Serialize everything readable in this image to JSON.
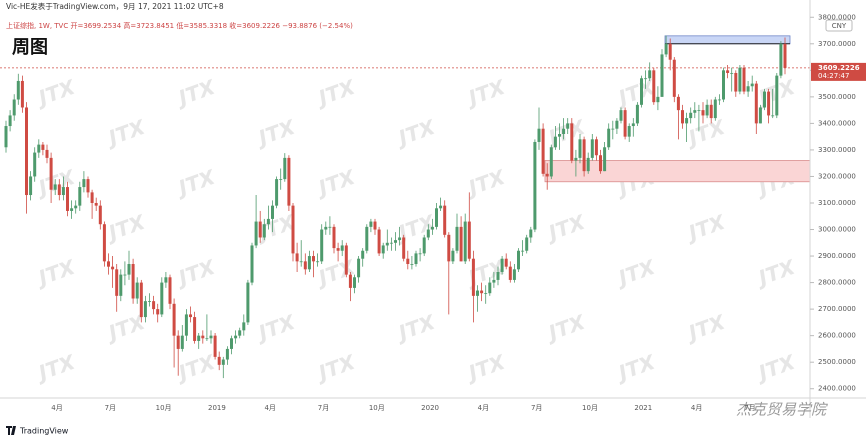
{
  "chart_data": {
    "type": "candlestick",
    "attribution": "Vic-HE发表于TradingView.com，9月 17, 2021 11:02 UTC+8",
    "legend": "上证综指, 1W, TVC 开=3699.2534 高=3723.8451 低=3585.3318 收=3609.2226 −93.8876 (−2.54%)",
    "title": "周图",
    "currency": "CNY",
    "countdown": "04:27:47",
    "last_price_label": "3609.2226",
    "watermark": "JTX",
    "brand": "TradingView",
    "signature": "杰克贸易学院",
    "up_color": "#4e9a6c",
    "down_color": "#cf4b43",
    "ylim": [
      2365,
      3850
    ],
    "yticks": [
      {
        "value": 2400,
        "label": "2400.0000"
      },
      {
        "value": 2500,
        "label": "2500.0000"
      },
      {
        "value": 2600,
        "label": "2600.0000"
      },
      {
        "value": 2700,
        "label": "2700.0000"
      },
      {
        "value": 2800,
        "label": "2800.0000"
      },
      {
        "value": 2900,
        "label": "2900.0000"
      },
      {
        "value": 3000,
        "label": "3000.0000"
      },
      {
        "value": 3100,
        "label": "3100.0000"
      },
      {
        "value": 3200,
        "label": "3200.0000"
      },
      {
        "value": 3300,
        "label": "3300.0000"
      },
      {
        "value": 3400,
        "label": "3400.0000"
      },
      {
        "value": 3500,
        "label": "3500.0000"
      },
      {
        "value": 3600,
        "label": "3600.0000"
      },
      {
        "value": 3700,
        "label": "3700.0000"
      },
      {
        "value": 3800,
        "label": "3800.0000"
      }
    ],
    "x_labels": [
      "4月",
      "7月",
      "10月",
      "2019",
      "4月",
      "7月",
      "10月",
      "2020",
      "4月",
      "7月",
      "10月",
      "2021",
      "4月",
      "7月"
    ],
    "zones": [
      {
        "from": 3700,
        "to": 3730,
        "fill": "#c9d6f6",
        "edge": "#6f86c9"
      },
      {
        "from": 3180,
        "to": 3260,
        "fill": "#fad5d5",
        "edge": "#d98b8b"
      }
    ],
    "candles": [
      [
        3310,
        3410,
        3290,
        3390
      ],
      [
        3390,
        3450,
        3370,
        3430
      ],
      [
        3430,
        3510,
        3410,
        3490
      ],
      [
        3490,
        3587,
        3470,
        3560
      ],
      [
        3560,
        3580,
        3440,
        3460
      ],
      [
        3460,
        3480,
        3060,
        3130
      ],
      [
        3130,
        3220,
        3110,
        3200
      ],
      [
        3200,
        3310,
        3180,
        3290
      ],
      [
        3290,
        3340,
        3270,
        3320
      ],
      [
        3320,
        3330,
        3280,
        3300
      ],
      [
        3300,
        3320,
        3250,
        3270
      ],
      [
        3270,
        3290,
        3100,
        3150
      ],
      [
        3150,
        3190,
        3130,
        3170
      ],
      [
        3170,
        3190,
        3110,
        3130
      ],
      [
        3130,
        3200,
        3110,
        3160
      ],
      [
        3160,
        3180,
        3050,
        3070
      ],
      [
        3070,
        3110,
        3040,
        3080
      ],
      [
        3080,
        3110,
        3060,
        3090
      ],
      [
        3090,
        3180,
        3070,
        3160
      ],
      [
        3160,
        3220,
        3140,
        3190
      ],
      [
        3190,
        3200,
        3120,
        3140
      ],
      [
        3140,
        3150,
        3040,
        3100
      ],
      [
        3100,
        3120,
        3070,
        3090
      ],
      [
        3090,
        3110,
        3000,
        3020
      ],
      [
        3020,
        3030,
        2860,
        2880
      ],
      [
        2880,
        2910,
        2830,
        2860
      ],
      [
        2860,
        2900,
        2780,
        2850
      ],
      [
        2850,
        2870,
        2690,
        2750
      ],
      [
        2750,
        2850,
        2730,
        2830
      ],
      [
        2830,
        2880,
        2790,
        2830
      ],
      [
        2830,
        2920,
        2810,
        2870
      ],
      [
        2870,
        2890,
        2720,
        2740
      ],
      [
        2740,
        2820,
        2720,
        2800
      ],
      [
        2800,
        2810,
        2650,
        2670
      ],
      [
        2670,
        2750,
        2650,
        2730
      ],
      [
        2730,
        2760,
        2710,
        2730
      ],
      [
        2730,
        2750,
        2680,
        2700
      ],
      [
        2700,
        2720,
        2650,
        2680
      ],
      [
        2680,
        2820,
        2670,
        2800
      ],
      [
        2800,
        2840,
        2780,
        2820
      ],
      [
        2820,
        2830,
        2700,
        2720
      ],
      [
        2720,
        2740,
        2480,
        2600
      ],
      [
        2600,
        2620,
        2449,
        2550
      ],
      [
        2550,
        2640,
        2540,
        2600
      ],
      [
        2600,
        2700,
        2580,
        2680
      ],
      [
        2680,
        2710,
        2650,
        2670
      ],
      [
        2670,
        2690,
        2570,
        2580
      ],
      [
        2580,
        2610,
        2550,
        2600
      ],
      [
        2600,
        2620,
        2570,
        2590
      ],
      [
        2590,
        2680,
        2580,
        2590
      ],
      [
        2590,
        2620,
        2570,
        2600
      ],
      [
        2600,
        2610,
        2510,
        2520
      ],
      [
        2520,
        2540,
        2470,
        2490
      ],
      [
        2490,
        2520,
        2440,
        2510
      ],
      [
        2510,
        2560,
        2490,
        2550
      ],
      [
        2550,
        2600,
        2530,
        2590
      ],
      [
        2590,
        2620,
        2570,
        2600
      ],
      [
        2600,
        2630,
        2590,
        2620
      ],
      [
        2620,
        2680,
        2600,
        2650
      ],
      [
        2650,
        2810,
        2640,
        2800
      ],
      [
        2800,
        2950,
        2790,
        2940
      ],
      [
        2940,
        3130,
        2930,
        3030
      ],
      [
        3030,
        3070,
        2950,
        2970
      ],
      [
        2970,
        3040,
        2960,
        3020
      ],
      [
        3020,
        3090,
        3000,
        3040
      ],
      [
        3040,
        3110,
        2990,
        3090
      ],
      [
        3090,
        3200,
        3080,
        3190
      ],
      [
        3190,
        3230,
        3150,
        3190
      ],
      [
        3190,
        3288,
        3180,
        3270
      ],
      [
        3270,
        3280,
        3070,
        3090
      ],
      [
        3090,
        3100,
        2880,
        2910
      ],
      [
        2910,
        2950,
        2840,
        2880
      ],
      [
        2880,
        2960,
        2860,
        2880
      ],
      [
        2880,
        2910,
        2830,
        2850
      ],
      [
        2850,
        2920,
        2840,
        2900
      ],
      [
        2900,
        2920,
        2820,
        2880
      ],
      [
        2880,
        2910,
        2860,
        2880
      ],
      [
        2880,
        3020,
        2870,
        3000
      ],
      [
        3000,
        3030,
        2980,
        3010
      ],
      [
        3010,
        3050,
        2980,
        3010
      ],
      [
        3010,
        3020,
        2910,
        2930
      ],
      [
        2930,
        2950,
        2880,
        2920
      ],
      [
        2920,
        2960,
        2900,
        2940
      ],
      [
        2940,
        2950,
        2820,
        2830
      ],
      [
        2830,
        2840,
        2730,
        2780
      ],
      [
        2780,
        2830,
        2760,
        2820
      ],
      [
        2820,
        2900,
        2800,
        2890
      ],
      [
        2890,
        2930,
        2860,
        2920
      ],
      [
        2920,
        3020,
        2910,
        3010
      ],
      [
        3010,
        3040,
        2990,
        3030
      ],
      [
        3030,
        3040,
        2980,
        3000
      ],
      [
        3000,
        3010,
        2900,
        2910
      ],
      [
        2910,
        2950,
        2890,
        2940
      ],
      [
        2940,
        3000,
        2920,
        2950
      ],
      [
        2950,
        2970,
        2920,
        2950
      ],
      [
        2950,
        2990,
        2920,
        2960
      ],
      [
        2960,
        3010,
        2940,
        2970
      ],
      [
        2970,
        2980,
        2880,
        2890
      ],
      [
        2890,
        2920,
        2850,
        2870
      ],
      [
        2870,
        2900,
        2850,
        2870
      ],
      [
        2870,
        2920,
        2860,
        2910
      ],
      [
        2910,
        2930,
        2880,
        2910
      ],
      [
        2910,
        2980,
        2900,
        2970
      ],
      [
        2970,
        3020,
        2960,
        3000
      ],
      [
        3000,
        3040,
        2980,
        3010
      ],
      [
        3010,
        3100,
        3000,
        3080
      ],
      [
        3080,
        3120,
        3070,
        3090
      ],
      [
        3090,
        3110,
        2970,
        2980
      ],
      [
        2980,
        2990,
        2680,
        2880
      ],
      [
        2880,
        2930,
        2870,
        2920
      ],
      [
        2920,
        3060,
        2910,
        3010
      ],
      [
        3010,
        3050,
        2880,
        2880
      ],
      [
        2880,
        3060,
        2870,
        3030
      ],
      [
        3030,
        3140,
        2880,
        2890
      ],
      [
        2890,
        2920,
        2650,
        2750
      ],
      [
        2750,
        2790,
        2690,
        2770
      ],
      [
        2770,
        2800,
        2730,
        2760
      ],
      [
        2760,
        2790,
        2720,
        2760
      ],
      [
        2760,
        2820,
        2750,
        2800
      ],
      [
        2800,
        2840,
        2780,
        2810
      ],
      [
        2810,
        2860,
        2790,
        2840
      ],
      [
        2840,
        2900,
        2830,
        2890
      ],
      [
        2890,
        2910,
        2850,
        2860
      ],
      [
        2860,
        2880,
        2800,
        2810
      ],
      [
        2810,
        2870,
        2800,
        2850
      ],
      [
        2850,
        2930,
        2840,
        2920
      ],
      [
        2920,
        2960,
        2900,
        2920
      ],
      [
        2920,
        2980,
        2910,
        2970
      ],
      [
        2970,
        3010,
        2950,
        3000
      ],
      [
        3000,
        3340,
        2990,
        3330
      ],
      [
        3330,
        3460,
        3300,
        3380
      ],
      [
        3380,
        3400,
        3200,
        3210
      ],
      [
        3210,
        3250,
        3150,
        3200
      ],
      [
        3200,
        3320,
        3190,
        3310
      ],
      [
        3310,
        3390,
        3300,
        3350
      ],
      [
        3350,
        3400,
        3300,
        3360
      ],
      [
        3360,
        3420,
        3340,
        3380
      ],
      [
        3380,
        3420,
        3360,
        3400
      ],
      [
        3400,
        3420,
        3250,
        3260
      ],
      [
        3260,
        3300,
        3200,
        3270
      ],
      [
        3270,
        3360,
        3250,
        3340
      ],
      [
        3340,
        3350,
        3200,
        3220
      ],
      [
        3220,
        3290,
        3210,
        3270
      ],
      [
        3270,
        3360,
        3260,
        3340
      ],
      [
        3340,
        3350,
        3260,
        3280
      ],
      [
        3280,
        3300,
        3210,
        3220
      ],
      [
        3220,
        3330,
        3220,
        3310
      ],
      [
        3310,
        3400,
        3300,
        3380
      ],
      [
        3380,
        3410,
        3340,
        3380
      ],
      [
        3380,
        3420,
        3360,
        3410
      ],
      [
        3410,
        3460,
        3400,
        3450
      ],
      [
        3450,
        3460,
        3340,
        3350
      ],
      [
        3350,
        3400,
        3330,
        3390
      ],
      [
        3390,
        3420,
        3350,
        3400
      ],
      [
        3400,
        3480,
        3390,
        3470
      ],
      [
        3470,
        3580,
        3460,
        3570
      ],
      [
        3570,
        3600,
        3530,
        3570
      ],
      [
        3570,
        3630,
        3560,
        3600
      ],
      [
        3600,
        3610,
        3470,
        3480
      ],
      [
        3480,
        3540,
        3450,
        3500
      ],
      [
        3500,
        3680,
        3500,
        3660
      ],
      [
        3660,
        3731,
        3650,
        3700
      ],
      [
        3700,
        3720,
        3600,
        3640
      ],
      [
        3640,
        3650,
        3480,
        3500
      ],
      [
        3500,
        3510,
        3340,
        3450
      ],
      [
        3450,
        3470,
        3380,
        3400
      ],
      [
        3400,
        3440,
        3330,
        3420
      ],
      [
        3420,
        3460,
        3400,
        3440
      ],
      [
        3440,
        3480,
        3420,
        3450
      ],
      [
        3450,
        3470,
        3370,
        3450
      ],
      [
        3450,
        3480,
        3400,
        3430
      ],
      [
        3430,
        3490,
        3420,
        3470
      ],
      [
        3470,
        3490,
        3400,
        3420
      ],
      [
        3420,
        3500,
        3410,
        3490
      ],
      [
        3490,
        3510,
        3470,
        3490
      ],
      [
        3490,
        3610,
        3480,
        3600
      ],
      [
        3600,
        3620,
        3570,
        3590
      ],
      [
        3590,
        3610,
        3520,
        3590
      ],
      [
        3590,
        3600,
        3500,
        3520
      ],
      [
        3520,
        3620,
        3510,
        3610
      ],
      [
        3610,
        3620,
        3510,
        3520
      ],
      [
        3520,
        3560,
        3500,
        3540
      ],
      [
        3540,
        3580,
        3520,
        3550
      ],
      [
        3550,
        3560,
        3360,
        3400
      ],
      [
        3400,
        3470,
        3400,
        3460
      ],
      [
        3460,
        3530,
        3450,
        3520
      ],
      [
        3520,
        3530,
        3400,
        3430
      ],
      [
        3430,
        3530,
        3420,
        3430
      ],
      [
        3430,
        3590,
        3420,
        3580
      ],
      [
        3580,
        3710,
        3570,
        3700
      ],
      [
        3699.2534,
        3723.8451,
        3585.3318,
        3609.2226
      ]
    ]
  }
}
